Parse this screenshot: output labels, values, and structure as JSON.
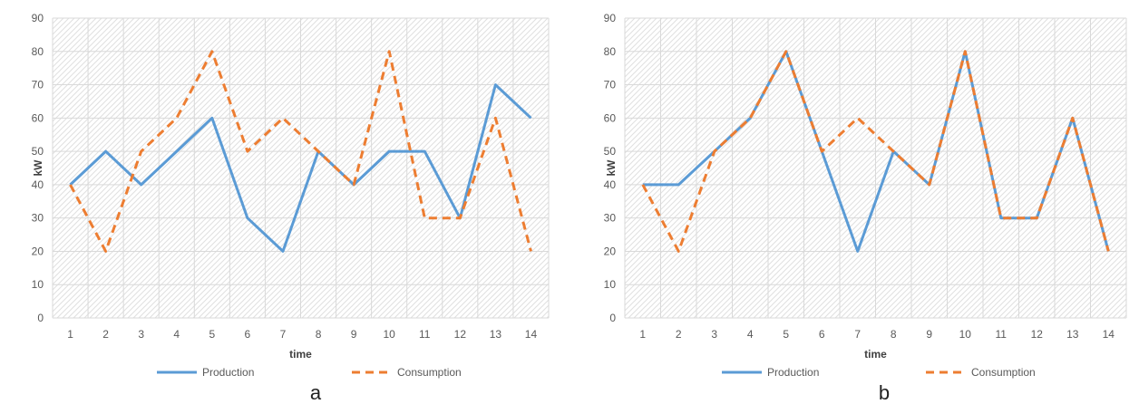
{
  "colors": {
    "production": "#5b9bd5",
    "consumption": "#ed7d31",
    "grid": "#d9d9d9",
    "hatch": "#e0e0e0"
  },
  "chart_data": [
    {
      "type": "line",
      "panel_label": "a",
      "xlabel": "time",
      "ylabel": "kW",
      "ylim": [
        0,
        90
      ],
      "yticks": [
        0,
        10,
        20,
        30,
        40,
        50,
        60,
        70,
        80,
        90
      ],
      "categories": [
        "1",
        "2",
        "3",
        "4",
        "5",
        "6",
        "7",
        "8",
        "9",
        "10",
        "11",
        "12",
        "13",
        "14"
      ],
      "grid": true,
      "legend": "bottom",
      "series": [
        {
          "name": "Production",
          "style": "solid",
          "values": [
            40,
            50,
            40,
            50,
            60,
            30,
            20,
            50,
            40,
            50,
            50,
            30,
            70,
            60
          ]
        },
        {
          "name": "Consumption",
          "style": "dashed",
          "values": [
            40,
            20,
            50,
            60,
            80,
            50,
            60,
            50,
            40,
            80,
            30,
            30,
            60,
            20
          ]
        }
      ]
    },
    {
      "type": "line",
      "panel_label": "b",
      "xlabel": "time",
      "ylabel": "kW",
      "ylim": [
        0,
        90
      ],
      "yticks": [
        0,
        10,
        20,
        30,
        40,
        50,
        60,
        70,
        80,
        90
      ],
      "categories": [
        "1",
        "2",
        "3",
        "4",
        "5",
        "6",
        "7",
        "8",
        "9",
        "10",
        "11",
        "12",
        "13",
        "14"
      ],
      "grid": true,
      "legend": "bottom",
      "series": [
        {
          "name": "Production",
          "style": "solid",
          "values": [
            40,
            40,
            50,
            60,
            80,
            50,
            20,
            50,
            40,
            80,
            30,
            30,
            60,
            20
          ]
        },
        {
          "name": "Consumption",
          "style": "dashed",
          "values": [
            40,
            20,
            50,
            60,
            80,
            50,
            60,
            50,
            40,
            80,
            30,
            30,
            60,
            20
          ]
        }
      ]
    }
  ]
}
